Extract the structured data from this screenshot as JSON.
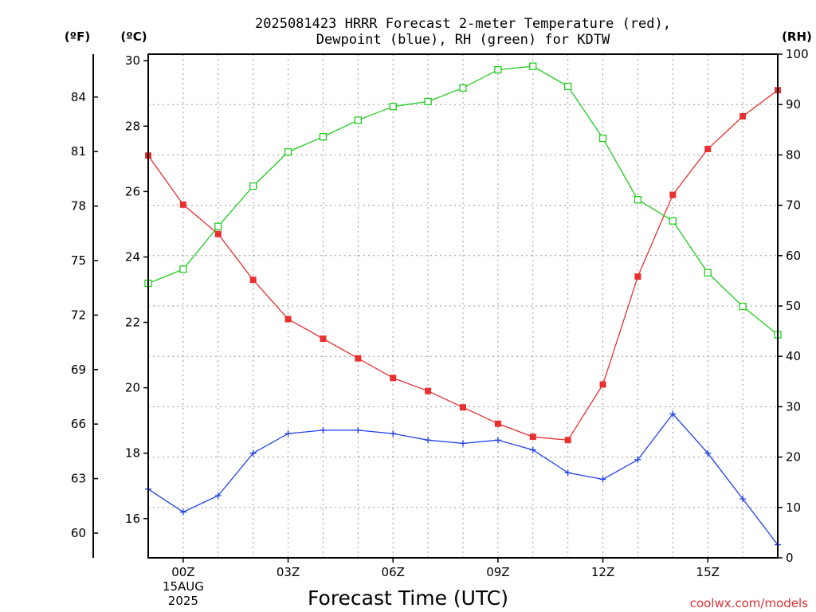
{
  "chart_data": {
    "type": "line",
    "title_line1": "2025081423 HRRR Forecast 2-meter Temperature (red),",
    "title_line2": "Dewpoint (blue), RH (green) for KDTW",
    "xlabel": "Forecast Time (UTC)",
    "credit": "coolwx.com/models",
    "units": {
      "fahrenheit": "(ºF)",
      "celsius": "(ºC)",
      "rh": "(RH)"
    },
    "x_hours": [
      -1,
      0,
      1,
      2,
      3,
      4,
      5,
      6,
      7,
      8,
      9,
      10,
      11,
      12,
      13,
      14,
      15,
      16,
      17
    ],
    "xlim": [
      -1,
      17
    ],
    "x_ticks": [
      {
        "hour": 0,
        "label": "00Z"
      },
      {
        "hour": 3,
        "label": "03Z"
      },
      {
        "hour": 6,
        "label": "06Z"
      },
      {
        "hour": 9,
        "label": "09Z"
      },
      {
        "hour": 12,
        "label": "12Z"
      },
      {
        "hour": 15,
        "label": "15Z"
      }
    ],
    "date_label": {
      "hour": 0,
      "line1": "15AUG",
      "line2": "2025"
    },
    "celsius_axis": {
      "min": 14.8,
      "max": 30.2,
      "ticks": [
        16,
        18,
        20,
        22,
        24,
        26,
        28,
        30
      ]
    },
    "fahrenheit_axis": {
      "ticks": [
        60,
        63,
        66,
        69,
        72,
        75,
        78,
        81,
        84
      ]
    },
    "rh_axis": {
      "min": 0,
      "max": 100,
      "ticks": [
        0,
        10,
        20,
        30,
        40,
        50,
        60,
        70,
        80,
        90,
        100
      ]
    },
    "series": [
      {
        "name": "Temperature",
        "axis": "celsius",
        "color": "#e83030",
        "marker": "filled-square",
        "values": [
          27.1,
          25.6,
          24.7,
          23.3,
          22.1,
          21.5,
          20.9,
          20.3,
          19.9,
          19.4,
          18.9,
          18.5,
          18.4,
          20.1,
          23.4,
          25.9,
          27.3,
          28.3,
          29.1
        ]
      },
      {
        "name": "Dewpoint",
        "axis": "celsius",
        "color": "#2040e8",
        "marker": "plus",
        "values": [
          16.9,
          16.2,
          16.7,
          18.0,
          18.6,
          18.7,
          18.7,
          18.6,
          18.4,
          18.3,
          18.4,
          18.1,
          17.4,
          17.2,
          17.8,
          19.2,
          18.0,
          16.6,
          15.2
        ]
      },
      {
        "name": "RH",
        "axis": "rh",
        "color": "#22cc22",
        "marker": "open-square",
        "values": [
          54.5,
          57.3,
          65.8,
          73.8,
          80.6,
          83.6,
          86.9,
          89.6,
          90.6,
          93.3,
          96.9,
          97.6,
          93.6,
          83.3,
          71.1,
          66.9,
          56.6,
          49.9,
          44.3
        ]
      }
    ]
  }
}
